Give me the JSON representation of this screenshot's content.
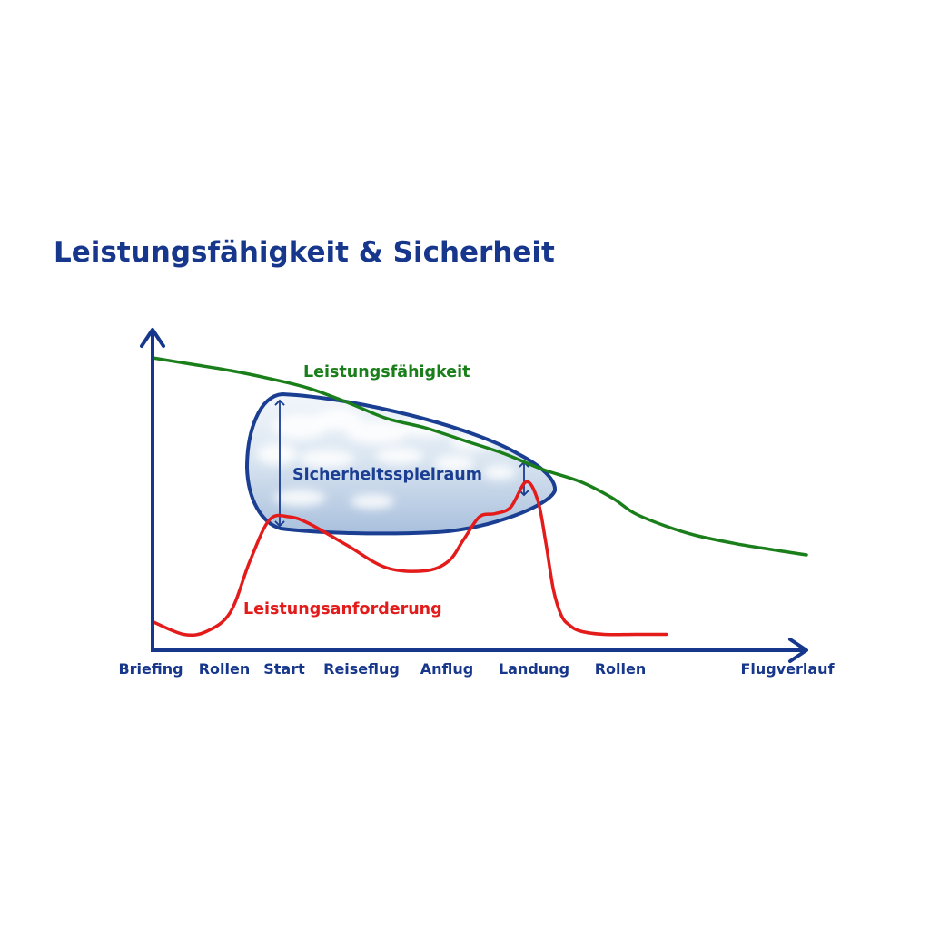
{
  "chart_data": {
    "type": "line",
    "title": "Leistungsfähigkeit & Sicherheit",
    "xlabel": "Flugverlauf",
    "ylabel": "",
    "x_ticks": [
      "Briefing",
      "Rollen",
      "Start",
      "Reiseflug",
      "Anflug",
      "Landung",
      "Rollen"
    ],
    "x_range": [
      0,
      8.4
    ],
    "y_range": [
      0,
      100
    ],
    "grid": false,
    "legend": "none",
    "series": [
      {
        "name": "Leistungsfähigkeit",
        "color": "#1a7f1a",
        "x": [
          0,
          0.5,
          1.0,
          1.5,
          2.0,
          2.5,
          3.0,
          3.5,
          4.0,
          4.5,
          5.0,
          5.5,
          5.9,
          6.2,
          6.6,
          7.0,
          7.5,
          8.0,
          8.4
        ],
        "y": [
          92,
          90,
          88,
          85.5,
          82.5,
          78,
          73,
          70,
          66,
          62,
          57,
          53,
          48,
          43,
          39,
          36,
          33.5,
          31.5,
          30
        ]
      },
      {
        "name": "Leistungsanforderung",
        "color": "#e31b1b",
        "x": [
          0,
          0.4,
          0.7,
          1.0,
          1.25,
          1.5,
          1.75,
          2.0,
          2.5,
          3.0,
          3.5,
          3.8,
          4.0,
          4.2,
          4.4,
          4.6,
          4.8,
          4.95,
          5.05,
          5.15,
          5.25,
          5.35,
          5.5,
          5.8,
          6.2,
          6.6
        ],
        "y": [
          9,
          5,
          6,
          12,
          28,
          41,
          42,
          40,
          33,
          26,
          25,
          28,
          35,
          42,
          43,
          45,
          53,
          47,
          34,
          19,
          11,
          8,
          6,
          5,
          5,
          5
        ]
      }
    ],
    "annotations": [
      {
        "text": "Sicherheitsspielraum",
        "color": "#1a3e91"
      }
    ],
    "colors": {
      "axis": "#17378c",
      "title": "#17378c",
      "envelope": "#1a3e91",
      "sky": "#c8d8ea"
    }
  }
}
